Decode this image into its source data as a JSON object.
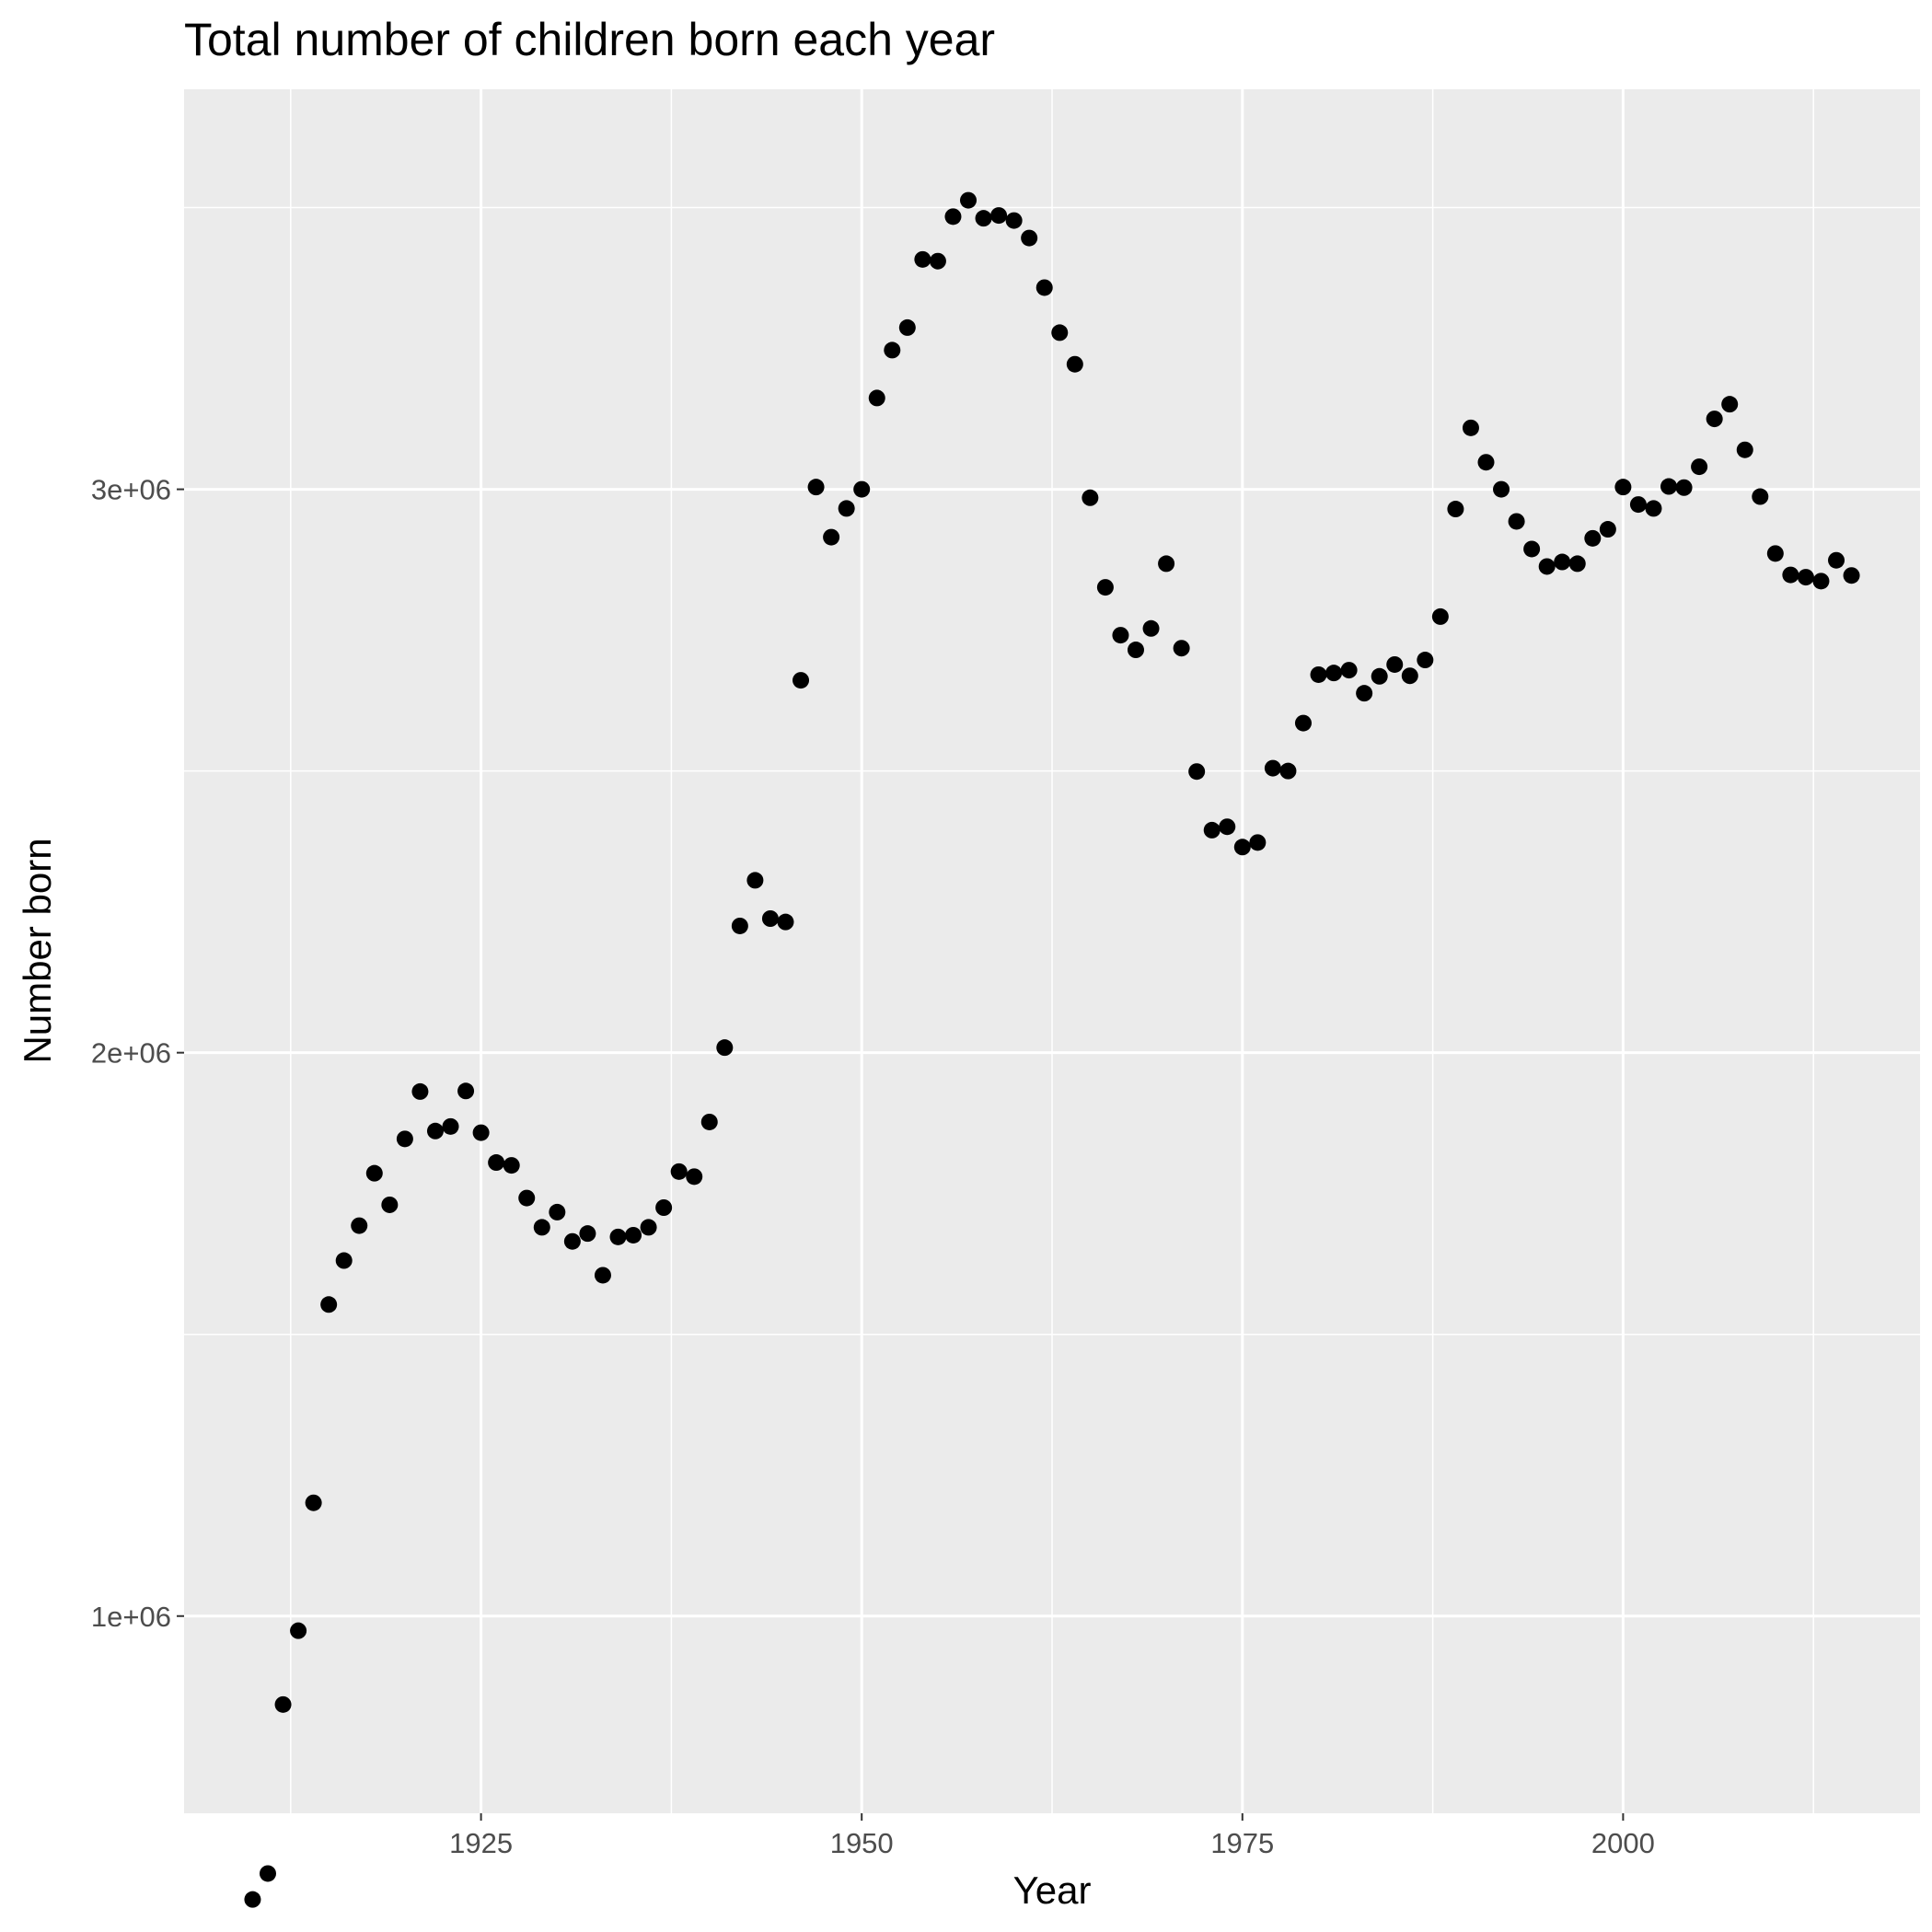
{
  "chart_data": {
    "type": "scatter",
    "title": "Total number of children born each year",
    "xlabel": "Year",
    "ylabel": "Number born",
    "xlim": [
      1905.5,
      2019.5
    ],
    "ylim": [
      650000,
      3710000
    ],
    "x_ticks": [
      1925,
      1950,
      1975,
      2000
    ],
    "x_tick_labels": [
      "1925",
      "1950",
      "1975",
      "2000"
    ],
    "x_minor_ticks": [
      1912.5,
      1937.5,
      1962.5,
      1987.5,
      2012.5
    ],
    "y_ticks": [
      1000000,
      2000000,
      3000000
    ],
    "y_tick_labels": [
      "1e+06",
      "2e+06",
      "3e+06"
    ],
    "y_minor_ticks": [
      500000,
      1500000,
      2500000,
      3500000
    ],
    "grid": true,
    "legend": "none",
    "point_color": "#000000",
    "panel_background": "#ebebeb",
    "series": [
      {
        "x": [
          1910,
          1911,
          1912,
          1913,
          1914,
          1915,
          1916,
          1917,
          1918,
          1919,
          1920,
          1921,
          1922,
          1923,
          1924,
          1925,
          1926,
          1927,
          1928,
          1929,
          1930,
          1931,
          1932,
          1933,
          1934,
          1935,
          1936,
          1937,
          1938,
          1939,
          1940,
          1941,
          1942,
          1943,
          1944,
          1945,
          1946,
          1947,
          1948,
          1949,
          1950,
          1951,
          1952,
          1953,
          1954,
          1955,
          1956,
          1957,
          1958,
          1959,
          1960,
          1961,
          1962,
          1963,
          1964,
          1965,
          1966,
          1967,
          1968,
          1969,
          1970,
          1971,
          1972,
          1973,
          1974,
          1975,
          1976,
          1977,
          1978,
          1979,
          1980,
          1981,
          1982,
          1983,
          1984,
          1985,
          1986,
          1987,
          1988,
          1989,
          1990,
          1991,
          1992,
          1993,
          1994,
          1995,
          1996,
          1997,
          1998,
          1999,
          2000,
          2001,
          2002,
          2003,
          2004,
          2005,
          2006,
          2007,
          2008,
          2009,
          2010,
          2011,
          2012,
          2013,
          2014,
          2015
        ],
        "y": [
          497000,
          543000,
          843000,
          974000,
          1201000,
          1553000,
          1631000,
          1693000,
          1786000,
          1730000,
          1847000,
          1931000,
          1861000,
          1869000,
          1932000,
          1858000,
          1805000,
          1800000,
          1742000,
          1690000,
          1717000,
          1665000,
          1679000,
          1605000,
          1673000,
          1676000,
          1690000,
          1725000,
          1789000,
          1780000,
          1877000,
          2009000,
          2225000,
          2306000,
          2238000,
          2232000,
          2661000,
          3004000,
          2915000,
          2966000,
          3000000,
          3162000,
          3247000,
          3287000,
          3408000,
          3405000,
          3484000,
          3513000,
          3481000,
          3486000,
          3477000,
          3446000,
          3358000,
          3278000,
          3222000,
          2985000,
          2826000,
          2741000,
          2715000,
          2753000,
          2868000,
          2718000,
          2499000,
          2395000,
          2401000,
          2365000,
          2373000,
          2505000,
          2500000,
          2585000,
          2671000,
          2674000,
          2679000,
          2638000,
          2668000,
          2689000,
          2669000,
          2697000,
          2774000,
          2965000,
          3109000,
          3048000,
          3000000,
          2943000,
          2894000,
          2863000,
          2871000,
          2868000,
          2913000,
          2929000,
          3004000,
          2973000,
          2966000,
          3005000,
          3003000,
          3040000,
          3125000,
          3151000,
          3070000,
          2987000,
          2886000,
          2848000,
          2844000,
          2837000,
          2874000,
          2847000
        ]
      }
    ]
  }
}
